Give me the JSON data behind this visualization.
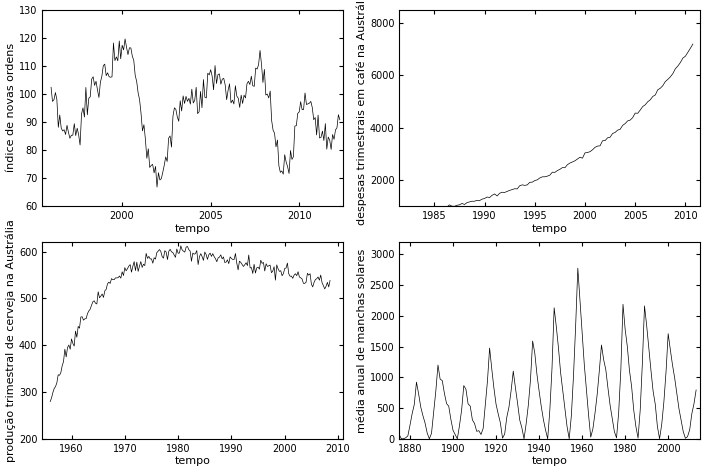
{
  "panels": [
    {
      "ylabel": "índice de novas ordens",
      "xlabel": "tempo",
      "ylim": [
        60,
        130
      ],
      "yticks": [
        60,
        70,
        80,
        90,
        100,
        110,
        120,
        130
      ],
      "xlim": [
        1995.5,
        2012.5
      ],
      "xticks": [
        2000,
        2005,
        2010
      ]
    },
    {
      "ylabel": "despesas trimestrais em café na Austrália",
      "xlabel": "tempo",
      "ylim": [
        1000,
        8500
      ],
      "yticks": [
        2000,
        4000,
        6000,
        8000
      ],
      "xlim": [
        1981.5,
        2011.5
      ],
      "xticks": [
        1985,
        1990,
        1995,
        2000,
        2005,
        2010
      ]
    },
    {
      "ylabel": "produção trimestral de cerveja na Austrália",
      "xlabel": "tempo",
      "ylim": [
        200,
        620
      ],
      "yticks": [
        200,
        300,
        400,
        500,
        600
      ],
      "xlim": [
        1954.5,
        2011
      ],
      "xticks": [
        1960,
        1970,
        1980,
        1990,
        2000,
        2010
      ]
    },
    {
      "ylabel": "média anual de manchas solares",
      "xlabel": "tempo",
      "ylim": [
        0,
        3200
      ],
      "yticks": [
        0,
        500,
        1000,
        1500,
        2000,
        2500,
        3000
      ],
      "xlim": [
        1875,
        2015
      ],
      "xticks": [
        1880,
        1900,
        1920,
        1940,
        1960,
        1980,
        2000
      ]
    }
  ],
  "line_color": "#000000",
  "bg_color": "#ffffff",
  "font_size": 8
}
